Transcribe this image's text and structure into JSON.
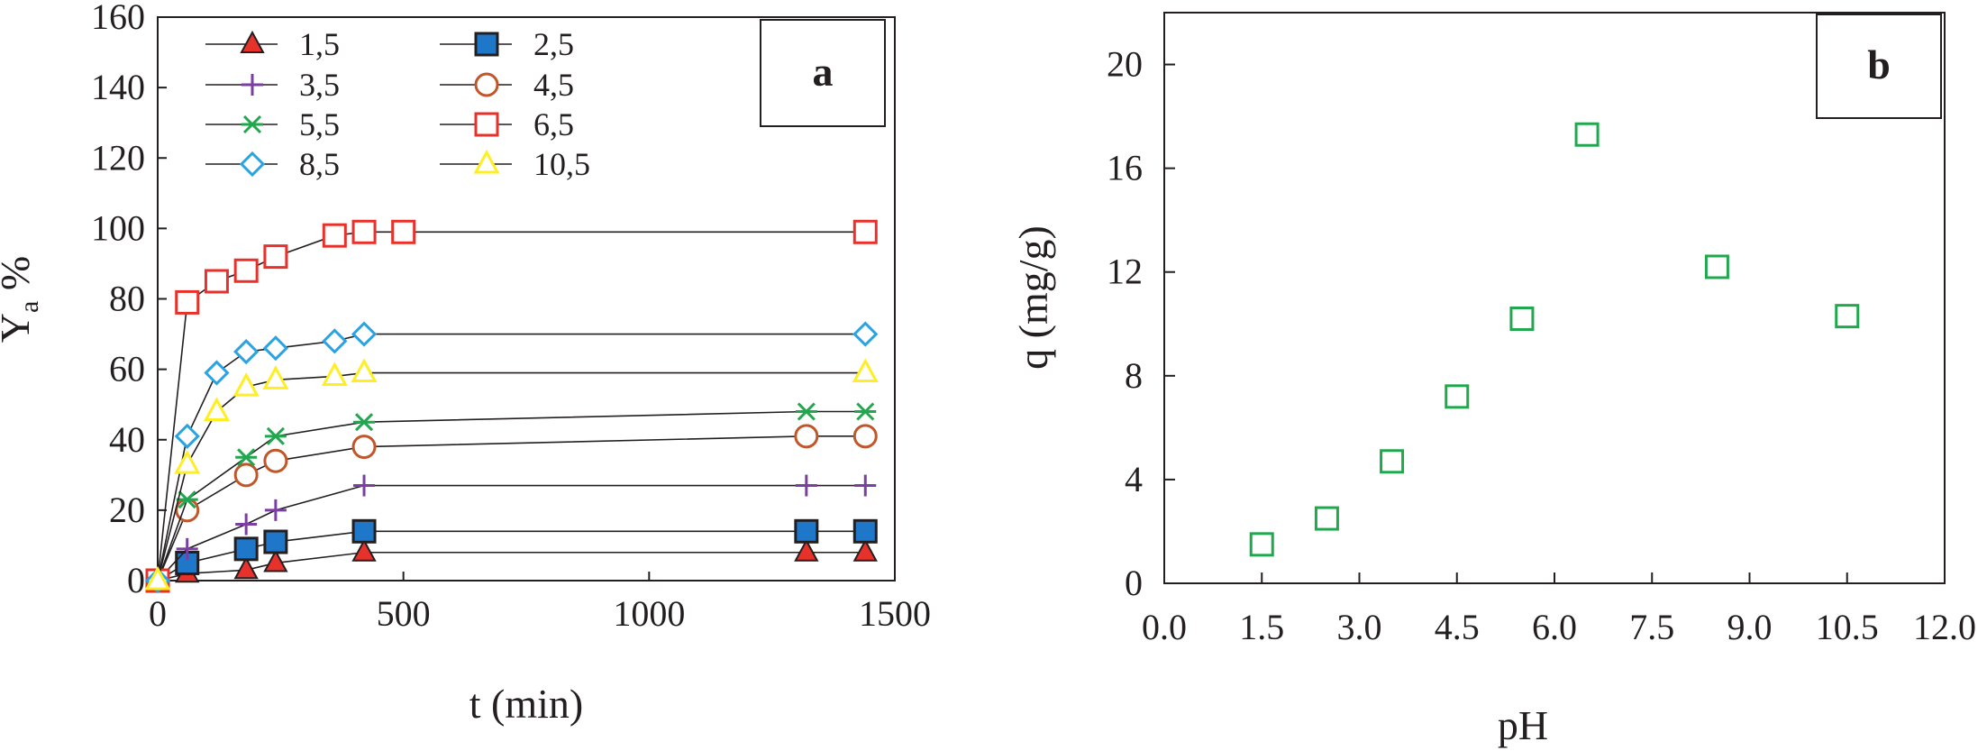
{
  "colors": {
    "red": "#e8312a",
    "blue": "#1f77c9",
    "purple": "#7a3fa1",
    "brown": "#c0562a",
    "green": "#21a84f",
    "cyan": "#29a3e3",
    "yellow": "#ffee22",
    "ink": "#231f20"
  },
  "chart_data": [
    {
      "type": "line",
      "panel_label": "a",
      "xlabel": "t (min)",
      "ylabel_main": "Y",
      "ylabel_sub": "a",
      "ylabel_tail": " %",
      "xlim": [
        0,
        1500
      ],
      "ylim": [
        0,
        160
      ],
      "xticks": [
        0,
        500,
        1000,
        1500
      ],
      "yticks": [
        0,
        20,
        40,
        60,
        80,
        100,
        120,
        140,
        160
      ],
      "grid": false,
      "legend": "top-left, two columns",
      "series": [
        {
          "name": "1,5",
          "marker": "triangle-filled",
          "color": "#e8312a",
          "x": [
            0,
            60,
            180,
            240,
            420,
            1320,
            1440
          ],
          "y": [
            0,
            2,
            3,
            5,
            8,
            8,
            8
          ]
        },
        {
          "name": "2,5",
          "marker": "square-filled",
          "color": "#1f77c9",
          "x": [
            0,
            60,
            180,
            240,
            420,
            1320,
            1440
          ],
          "y": [
            0,
            5,
            9,
            11,
            14,
            14,
            14
          ]
        },
        {
          "name": "3,5",
          "marker": "plus",
          "color": "#7a3fa1",
          "x": [
            0,
            60,
            180,
            240,
            420,
            1320,
            1440
          ],
          "y": [
            0,
            9,
            16,
            20,
            27,
            27,
            27
          ]
        },
        {
          "name": "4,5",
          "marker": "circle-open",
          "color": "#c0562a",
          "x": [
            0,
            60,
            180,
            240,
            420,
            1320,
            1440
          ],
          "y": [
            0,
            20,
            30,
            34,
            38,
            41,
            41
          ]
        },
        {
          "name": "5,5",
          "marker": "asterisk",
          "color": "#21a84f",
          "x": [
            0,
            60,
            180,
            240,
            420,
            1320,
            1440
          ],
          "y": [
            0,
            23,
            35,
            41,
            45,
            48,
            48
          ]
        },
        {
          "name": "6,5",
          "marker": "square-open",
          "color": "#e8312a",
          "x": [
            0,
            60,
            120,
            180,
            240,
            360,
            420,
            500,
            1440
          ],
          "y": [
            0,
            79,
            85,
            88,
            92,
            98,
            99,
            99,
            99
          ]
        },
        {
          "name": "8,5",
          "marker": "diamond-open",
          "color": "#29a3e3",
          "x": [
            0,
            60,
            120,
            180,
            240,
            360,
            420,
            1440
          ],
          "y": [
            0,
            41,
            59,
            65,
            66,
            68,
            70,
            70
          ]
        },
        {
          "name": "10,5",
          "marker": "triangle-open",
          "color": "#ffee22",
          "x": [
            0,
            60,
            120,
            180,
            240,
            360,
            420,
            1440
          ],
          "y": [
            0,
            33,
            48,
            55,
            57,
            58,
            59,
            59
          ]
        }
      ]
    },
    {
      "type": "scatter",
      "panel_label": "b",
      "xlabel": "pH",
      "ylabel": "q (mg/g)",
      "xlim": [
        0,
        12
      ],
      "ylim": [
        0,
        22
      ],
      "xticks": [
        "0.0",
        "1.5",
        "3.0",
        "4.5",
        "6.0",
        "7.5",
        "9.0",
        "10.5",
        "12.0"
      ],
      "yticks": [
        "0",
        "4",
        "8",
        "12",
        "16",
        "20"
      ],
      "grid": false,
      "series": [
        {
          "marker": "square-open",
          "color": "#21a84f",
          "x": [
            1.5,
            2.5,
            3.5,
            4.5,
            5.5,
            6.5,
            8.5,
            10.5
          ],
          "y": [
            1.5,
            2.5,
            4.7,
            7.2,
            10.2,
            17.3,
            12.2,
            10.3
          ]
        }
      ]
    }
  ]
}
